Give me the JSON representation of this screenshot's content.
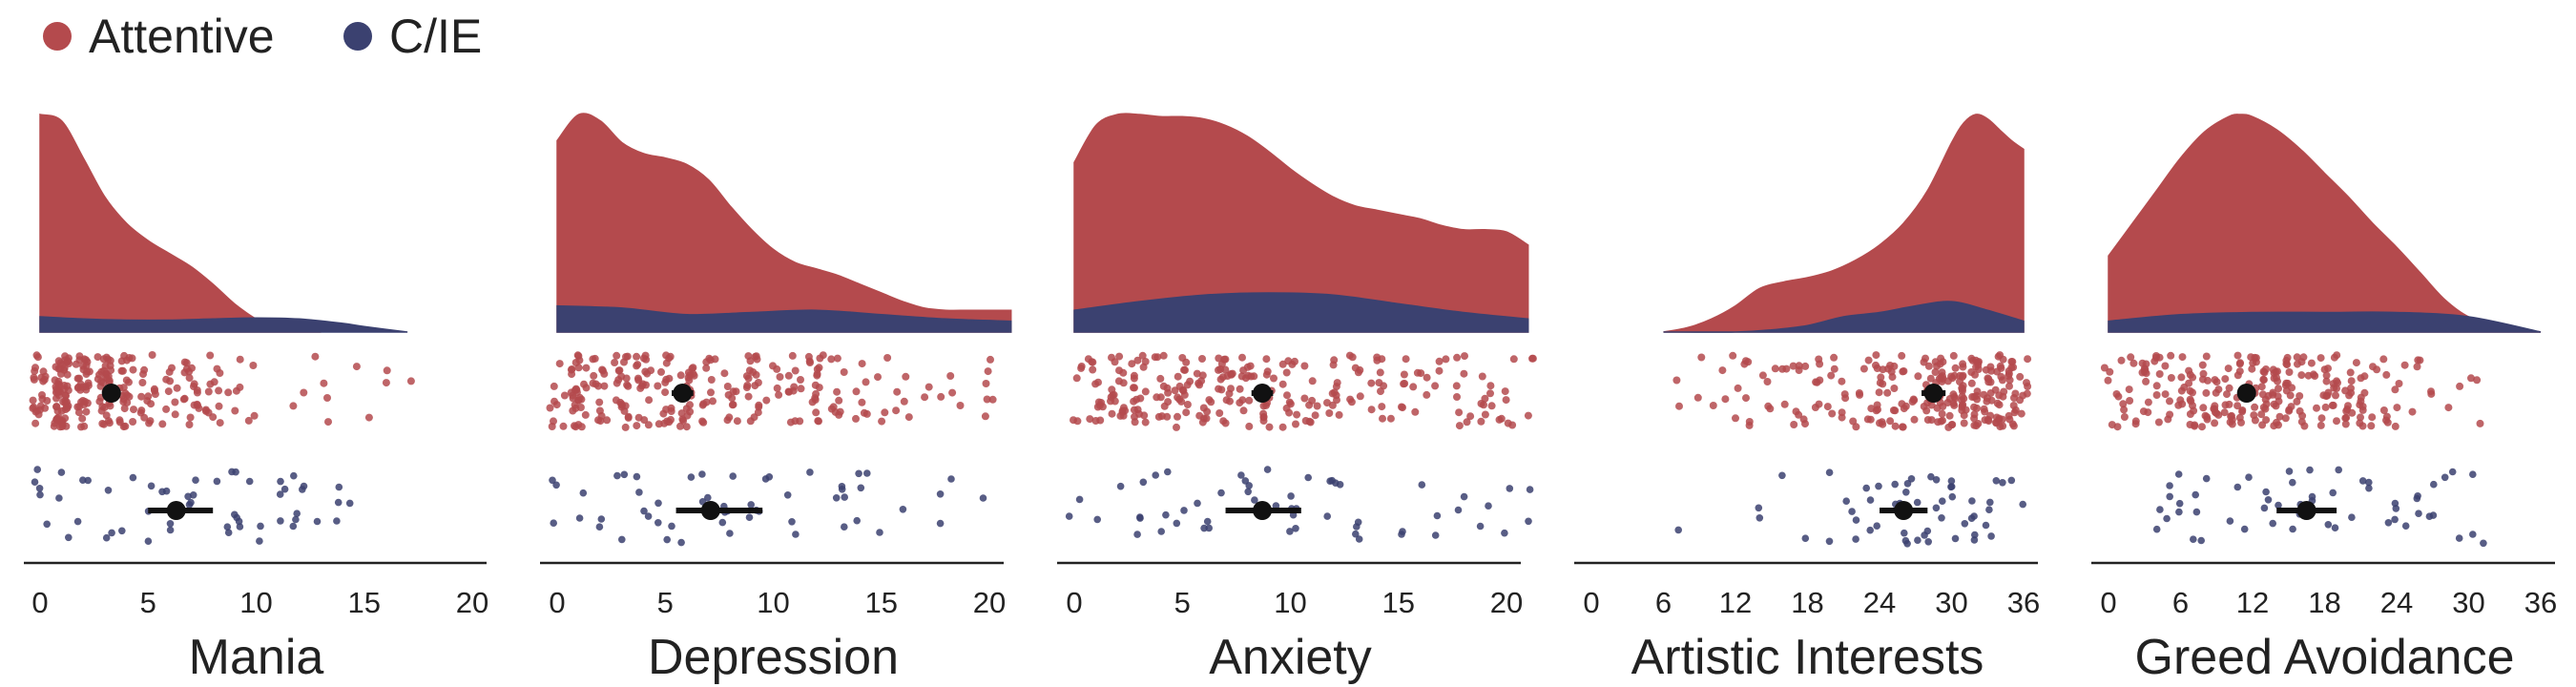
{
  "legend": {
    "items": [
      {
        "label": "Attentive",
        "color": "#b44a4d"
      },
      {
        "label": "C/IE",
        "color": "#3b4170"
      }
    ],
    "placement": "top-left"
  },
  "chart_data": [
    {
      "type": "raincloud",
      "xlabel": "Mania",
      "xlim": [
        -1,
        21.5
      ],
      "ticks": [
        0,
        5,
        10,
        15,
        20
      ],
      "density_attentive": {
        "x": [
          0,
          1,
          2,
          3,
          4,
          5,
          6,
          7,
          8,
          9,
          10,
          11,
          12,
          13
        ],
        "y": [
          1.0,
          0.97,
          0.8,
          0.62,
          0.5,
          0.42,
          0.36,
          0.3,
          0.22,
          0.13,
          0.06,
          0.025,
          0.01,
          0.0
        ]
      },
      "density_cie": {
        "x": [
          0,
          2,
          4,
          6,
          8,
          10,
          12,
          14,
          15,
          17
        ],
        "y": [
          0.07,
          0.06,
          0.055,
          0.055,
          0.06,
          0.065,
          0.06,
          0.04,
          0.025,
          0.0
        ]
      },
      "attentive_median": 3.3,
      "attentive_ci": [
        3.0,
        3.6
      ],
      "cie_median": 6.3,
      "cie_ci": [
        5.0,
        8.0
      ],
      "attentive_range": [
        0,
        17
      ],
      "cie_range": [
        0,
        15
      ]
    },
    {
      "type": "raincloud",
      "xlabel": "Depression",
      "xlim": [
        -1,
        21.5
      ],
      "ticks": [
        0,
        5,
        10,
        15,
        20
      ],
      "density_attentive": {
        "x": [
          0,
          1,
          2,
          3,
          4,
          5,
          6,
          7,
          8,
          9,
          10,
          11,
          12,
          13,
          14,
          15,
          16,
          17,
          18,
          19,
          20,
          21
        ],
        "y": [
          0.88,
          1.0,
          0.97,
          0.87,
          0.82,
          0.8,
          0.77,
          0.7,
          0.58,
          0.47,
          0.38,
          0.32,
          0.29,
          0.26,
          0.22,
          0.18,
          0.14,
          0.11,
          0.1,
          0.1,
          0.1,
          0.1
        ]
      },
      "density_cie": {
        "x": [
          0,
          3,
          6,
          9,
          12,
          15,
          18,
          21
        ],
        "y": [
          0.12,
          0.11,
          0.08,
          0.09,
          0.1,
          0.08,
          0.06,
          0.05
        ]
      },
      "attentive_median": 5.8,
      "attentive_ci": [
        5.3,
        6.3
      ],
      "cie_median": 7.1,
      "cie_ci": [
        5.5,
        9.5
      ],
      "attentive_range": [
        0,
        21
      ],
      "cie_range": [
        0,
        21
      ]
    },
    {
      "type": "raincloud",
      "xlabel": "Anxiety",
      "xlim": [
        -1,
        21.5
      ],
      "ticks": [
        0,
        5,
        10,
        15,
        20
      ],
      "density_attentive": {
        "x": [
          0,
          1,
          2,
          3,
          4,
          5,
          6,
          7,
          8,
          9,
          10,
          11,
          12,
          13,
          14,
          15,
          16,
          17,
          18,
          19,
          20,
          21
        ],
        "y": [
          0.78,
          0.95,
          1.0,
          1.0,
          0.99,
          0.99,
          0.98,
          0.95,
          0.9,
          0.83,
          0.75,
          0.68,
          0.62,
          0.58,
          0.56,
          0.54,
          0.52,
          0.49,
          0.47,
          0.47,
          0.46,
          0.4
        ]
      },
      "density_cie": {
        "x": [
          0,
          3,
          6,
          9,
          12,
          15,
          18,
          21
        ],
        "y": [
          0.1,
          0.14,
          0.17,
          0.18,
          0.17,
          0.13,
          0.09,
          0.06
        ]
      },
      "attentive_median": 8.7,
      "attentive_ci": [
        8.2,
        9.2
      ],
      "cie_median": 8.7,
      "cie_ci": [
        7.0,
        10.5
      ],
      "attentive_range": [
        0,
        21
      ],
      "cie_range": [
        0,
        21
      ]
    },
    {
      "type": "raincloud",
      "xlabel": "Artistic Interests",
      "xlim": [
        -1,
        37.5
      ],
      "ticks": [
        0,
        6,
        12,
        18,
        24,
        30,
        36
      ],
      "density_attentive": {
        "x": [
          6,
          8,
          10,
          12,
          14,
          16,
          18,
          20,
          22,
          24,
          26,
          28,
          30,
          31,
          32,
          33,
          34,
          35,
          36
        ],
        "y": [
          0.0,
          0.02,
          0.06,
          0.12,
          0.2,
          0.23,
          0.25,
          0.28,
          0.33,
          0.4,
          0.5,
          0.65,
          0.87,
          0.96,
          1.0,
          0.98,
          0.93,
          0.88,
          0.84
        ]
      },
      "density_cie": {
        "x": [
          6,
          12,
          15,
          18,
          21,
          24,
          27,
          30,
          33,
          36
        ],
        "y": [
          0.0,
          0.0,
          0.01,
          0.03,
          0.07,
          0.09,
          0.12,
          0.14,
          0.1,
          0.05
        ]
      },
      "attentive_median": 28.5,
      "attentive_ci": [
        27.5,
        29.5
      ],
      "cie_median": 26.0,
      "cie_ci": [
        24.0,
        28.0
      ],
      "attentive_range": [
        6,
        36
      ],
      "cie_range": [
        5,
        36
      ]
    },
    {
      "type": "raincloud",
      "xlabel": "Greed Avoidance",
      "xlim": [
        -1,
        37.5
      ],
      "ticks": [
        0,
        6,
        12,
        18,
        24,
        30,
        36
      ],
      "density_attentive": {
        "x": [
          0,
          2,
          4,
          6,
          8,
          10,
          11,
          12,
          14,
          16,
          18,
          20,
          22,
          24,
          26,
          28,
          30,
          32,
          34,
          36
        ],
        "y": [
          0.35,
          0.5,
          0.65,
          0.8,
          0.92,
          0.99,
          1.0,
          0.99,
          0.93,
          0.84,
          0.73,
          0.62,
          0.5,
          0.39,
          0.27,
          0.15,
          0.07,
          0.04,
          0.02,
          0.0
        ]
      },
      "density_cie": {
        "x": [
          0,
          6,
          12,
          18,
          24,
          30,
          36
        ],
        "y": [
          0.05,
          0.08,
          0.09,
          0.09,
          0.09,
          0.07,
          0.0
        ]
      },
      "attentive_median": 11.5,
      "attentive_ci": [
        10.8,
        12.2
      ],
      "cie_median": 16.5,
      "cie_ci": [
        14.0,
        19.0
      ],
      "attentive_range": [
        0,
        33
      ],
      "cie_range": [
        0,
        35
      ]
    }
  ]
}
